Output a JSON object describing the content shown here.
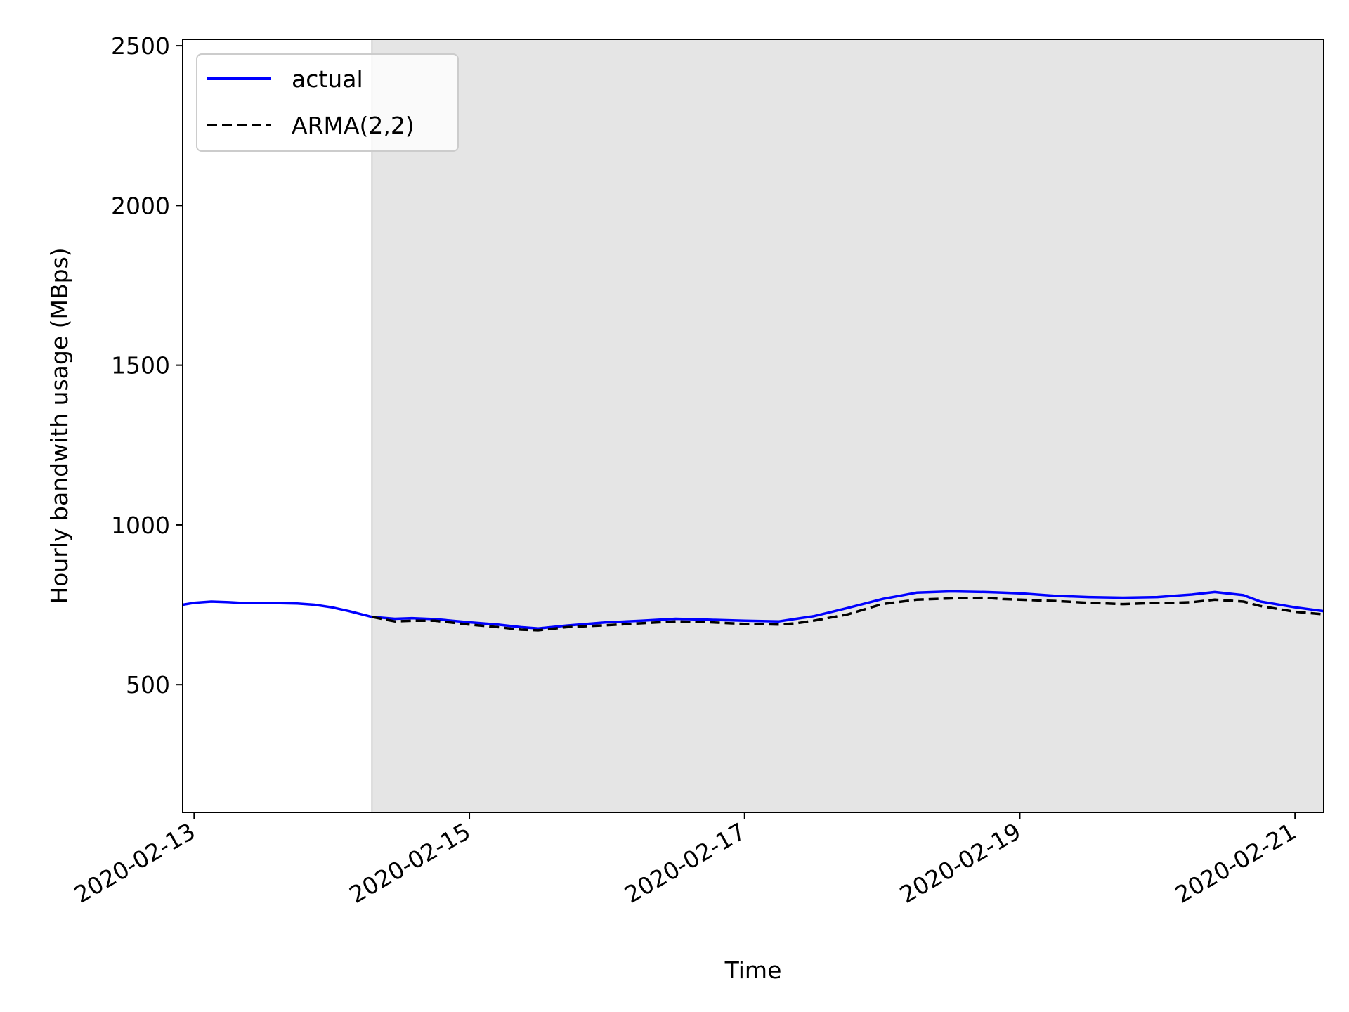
{
  "chart_data": {
    "type": "line",
    "title": "",
    "xlabel": "Time",
    "ylabel": "Hourly bandwith usage (MBps)",
    "xlim": [
      "2020-02-12T22:00",
      "2020-02-21T05:00"
    ],
    "ylim": [
      100,
      2520
    ],
    "yticks": [
      500,
      1000,
      1500,
      2000,
      2500
    ],
    "xticks": [
      "2020-02-13",
      "2020-02-15",
      "2020-02-17",
      "2020-02-19",
      "2020-02-21"
    ],
    "grid": false,
    "legend_position": "upper left",
    "shaded_region": {
      "start": "2020-02-14T07:00",
      "end": "2020-02-21T05:00",
      "color": "#e5e5e5"
    },
    "series": [
      {
        "name": "actual",
        "color": "#0000ff",
        "style": "solid",
        "x": [
          "2020-02-12T22:00",
          "2020-02-13T00:00",
          "2020-02-13T03:00",
          "2020-02-13T06:00",
          "2020-02-13T09:00",
          "2020-02-13T12:00",
          "2020-02-13T15:00",
          "2020-02-13T18:00",
          "2020-02-13T21:00",
          "2020-02-14T00:00",
          "2020-02-14T03:00",
          "2020-02-14T07:00",
          "2020-02-14T11:00",
          "2020-02-14T14:00",
          "2020-02-14T18:00",
          "2020-02-15T00:00",
          "2020-02-15T05:00",
          "2020-02-15T09:00",
          "2020-02-15T12:00",
          "2020-02-15T17:00",
          "2020-02-16T00:00",
          "2020-02-16T06:00",
          "2020-02-16T12:00",
          "2020-02-16T18:00",
          "2020-02-17T00:00",
          "2020-02-17T06:00",
          "2020-02-17T09:00",
          "2020-02-17T12:00",
          "2020-02-17T18:00",
          "2020-02-18T00:00",
          "2020-02-18T06:00",
          "2020-02-18T12:00",
          "2020-02-18T18:00",
          "2020-02-18T21:00",
          "2020-02-19T00:00",
          "2020-02-19T06:00",
          "2020-02-19T12:00",
          "2020-02-19T18:00",
          "2020-02-20T00:00",
          "2020-02-20T03:00",
          "2020-02-20T06:00",
          "2020-02-20T10:00",
          "2020-02-20T15:00",
          "2020-02-20T18:00",
          "2020-02-21T00:00",
          "2020-02-21T05:00"
        ],
        "y": [
          750,
          756,
          760,
          758,
          755,
          756,
          755,
          754,
          750,
          742,
          730,
          712,
          706,
          708,
          705,
          695,
          688,
          680,
          676,
          685,
          695,
          700,
          706,
          703,
          700,
          698,
          706,
          714,
          740,
          768,
          788,
          792,
          790,
          788,
          786,
          778,
          774,
          772,
          774,
          778,
          782,
          790,
          780,
          760,
          742,
          730
        ]
      },
      {
        "name": "ARMA(2,2)",
        "color": "#000000",
        "style": "dashed",
        "x": [
          "2020-02-14T07:00",
          "2020-02-14T11:00",
          "2020-02-14T14:00",
          "2020-02-14T18:00",
          "2020-02-15T00:00",
          "2020-02-15T05:00",
          "2020-02-15T09:00",
          "2020-02-15T12:00",
          "2020-02-15T17:00",
          "2020-02-16T00:00",
          "2020-02-16T06:00",
          "2020-02-16T12:00",
          "2020-02-16T18:00",
          "2020-02-17T00:00",
          "2020-02-17T06:00",
          "2020-02-17T09:00",
          "2020-02-17T12:00",
          "2020-02-17T18:00",
          "2020-02-18T00:00",
          "2020-02-18T06:00",
          "2020-02-18T12:00",
          "2020-02-18T18:00",
          "2020-02-18T21:00",
          "2020-02-19T00:00",
          "2020-02-19T06:00",
          "2020-02-19T12:00",
          "2020-02-19T18:00",
          "2020-02-20T00:00",
          "2020-02-20T03:00",
          "2020-02-20T06:00",
          "2020-02-20T10:00",
          "2020-02-20T15:00",
          "2020-02-20T18:00",
          "2020-02-21T00:00",
          "2020-02-21T05:00"
        ],
        "y": [
          712,
          698,
          700,
          700,
          688,
          680,
          672,
          670,
          680,
          686,
          692,
          698,
          695,
          690,
          688,
          692,
          700,
          720,
          752,
          766,
          770,
          772,
          768,
          766,
          762,
          756,
          752,
          756,
          756,
          758,
          766,
          760,
          746,
          728,
          720
        ]
      }
    ]
  }
}
